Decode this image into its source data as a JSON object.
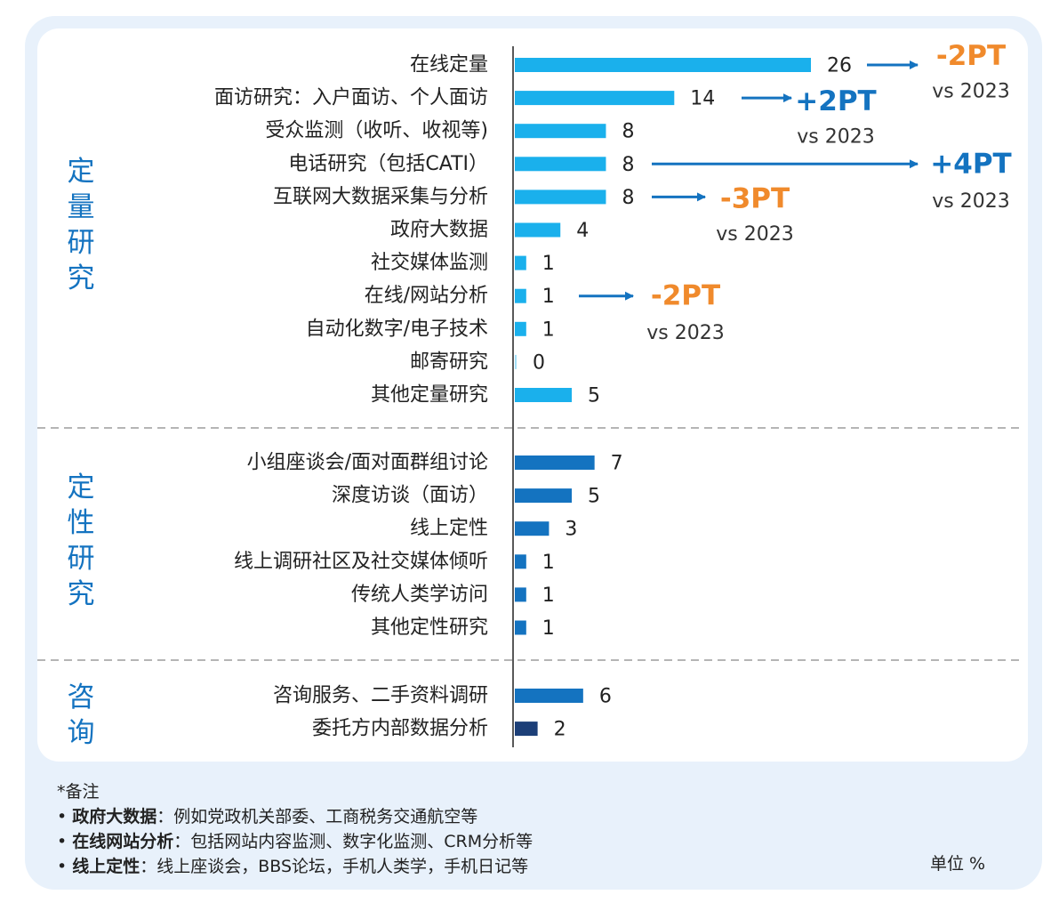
{
  "chart_data": {
    "type": "bar",
    "orientation": "horizontal",
    "groups": [
      {
        "label": "定量研究",
        "color": "#1ab0ec",
        "items": [
          {
            "label": "在线定量",
            "value": 26
          },
          {
            "label": "面访研究：入户面访、个人面访",
            "value": 14
          },
          {
            "label": "受众监测（收听、收视等)",
            "value": 8
          },
          {
            "label": "电话研究（包括CATI）",
            "value": 8
          },
          {
            "label": "互联网大数据采集与分析",
            "value": 8
          },
          {
            "label": "政府大数据",
            "value": 4
          },
          {
            "label": "社交媒体监测",
            "value": 1
          },
          {
            "label": "在线/网站分析",
            "value": 1
          },
          {
            "label": "自动化数字/电子技术",
            "value": 1
          },
          {
            "label": "邮寄研究",
            "value": 0
          },
          {
            "label": "其他定量研究",
            "value": 5
          }
        ]
      },
      {
        "label": "定性研究",
        "color": "#1473c0",
        "items": [
          {
            "label": "小组座谈会/面对面群组讨论",
            "value": 7
          },
          {
            "label": "深度访谈（面访）",
            "value": 5
          },
          {
            "label": "线上定性",
            "value": 3
          },
          {
            "label": "线上调研社区及社交媒体倾听",
            "value": 1
          },
          {
            "label": "传统人类学访问",
            "value": 1
          },
          {
            "label": "其他定性研究",
            "value": 1
          }
        ]
      },
      {
        "label": "咨询",
        "color": "#1473c0",
        "items": [
          {
            "label": "咨询服务、二手资料调研",
            "value": 6
          },
          {
            "label": "委托方内部数据分析",
            "value": 2,
            "color": "#1c3f78"
          }
        ]
      }
    ],
    "annotations": [
      {
        "item": "在线定量",
        "change": "-2PT",
        "vs": "vs 2023",
        "color": "#f08a2c"
      },
      {
        "item": "面访研究：入户面访、个人面访",
        "change": "+2PT",
        "vs": "vs 2023",
        "color": "#1473c0"
      },
      {
        "item": "电话研究（包括CATI）",
        "change": "+4PT",
        "vs": "vs 2023",
        "color": "#1473c0"
      },
      {
        "item": "互联网大数据采集与分析",
        "change": "-3PT",
        "vs": "vs 2023",
        "color": "#f08a2c"
      },
      {
        "item": "在线/网站分析",
        "change": "-2PT",
        "vs": "vs 2023",
        "color": "#f08a2c"
      }
    ],
    "arrow_color": "#1473c0",
    "group_label_color": "#1473c0"
  },
  "notes": {
    "title": "*备注",
    "items": [
      {
        "term": "政府大数据",
        "text": "：例如党政机关部委、工商税务交通航空等"
      },
      {
        "term": "在线网站分析",
        "text": "：包括网站内容监测、数字化监测、CRM分析等"
      },
      {
        "term": "线上定性",
        "text": "：线上座谈会，BBS论坛，手机人类学，手机日记等"
      }
    ]
  },
  "unit": "单位 %"
}
